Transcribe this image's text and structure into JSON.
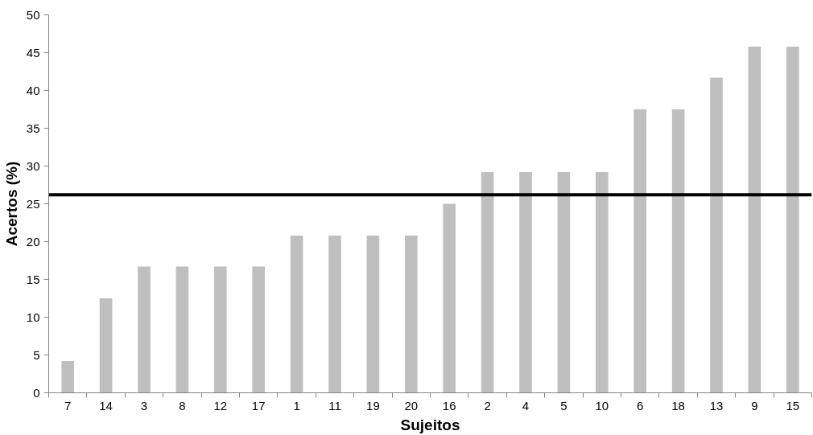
{
  "chart_data": {
    "type": "bar",
    "xlabel": "Sujeitos",
    "ylabel": "Acertos (%)",
    "categories": [
      "7",
      "14",
      "3",
      "8",
      "12",
      "17",
      "1",
      "11",
      "19",
      "20",
      "16",
      "2",
      "4",
      "5",
      "10",
      "6",
      "18",
      "13",
      "9",
      "15"
    ],
    "values": [
      4.2,
      12.5,
      16.7,
      16.7,
      16.7,
      16.7,
      20.8,
      20.8,
      20.8,
      20.8,
      25,
      29.2,
      29.2,
      29.2,
      29.2,
      37.5,
      37.5,
      41.7,
      45.8,
      45.8
    ],
    "color": "#bfbfbf",
    "ylim": [
      0,
      50
    ],
    "yticks": [
      0,
      5,
      10,
      15,
      20,
      25,
      30,
      35,
      40,
      45,
      50
    ],
    "ref_lines": [
      {
        "axis": "y",
        "value": 26.2,
        "color": "#000000",
        "line_style": "solid"
      }
    ],
    "grid": false
  }
}
